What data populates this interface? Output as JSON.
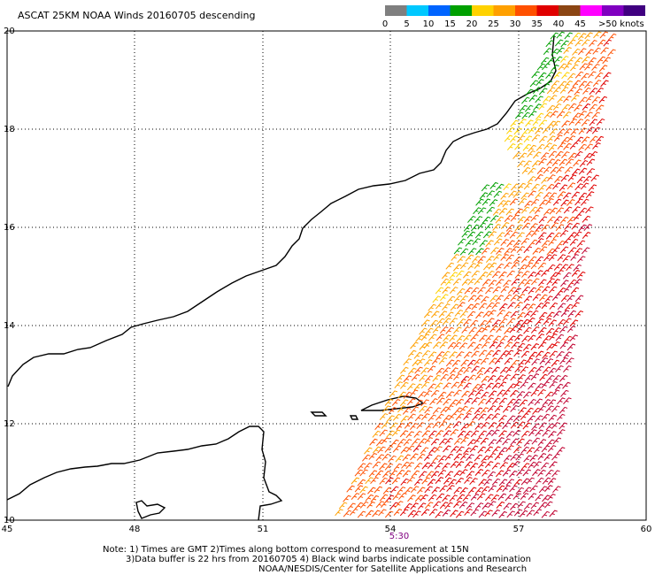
{
  "title": "ASCAT 25KM NOAA Winds 20160705 descending",
  "legend": {
    "labels": [
      "0",
      "5",
      "10",
      "15",
      "20",
      "25",
      "30",
      "35",
      "40",
      "45",
      ">50 knots"
    ],
    "colors": [
      "#7f7f7f",
      "#00c8ff",
      "#0064ff",
      "#00a000",
      "#ffd200",
      "#ffa000",
      "#ff5000",
      "#e00000",
      "#8b4513",
      "#ff00ff",
      "#8000c0",
      "#400080"
    ]
  },
  "axes": {
    "lon_ticks": [
      "45",
      "48",
      "51",
      "54",
      "57",
      "60"
    ],
    "lat_ticks": [
      "20",
      "18",
      "16",
      "14",
      "12",
      "10"
    ]
  },
  "pass_time": "5:30",
  "notes": {
    "line1": "Note: 1) Times are GMT 2)Times along bottom correspond to measurement at 15N",
    "line2": "3)Data buffer is 22 hrs from 20160705 4) Black wind barbs indicate possible contamination",
    "line3": "NOAA/NESDIS/Center for Satellite Applications and Research"
  }
}
